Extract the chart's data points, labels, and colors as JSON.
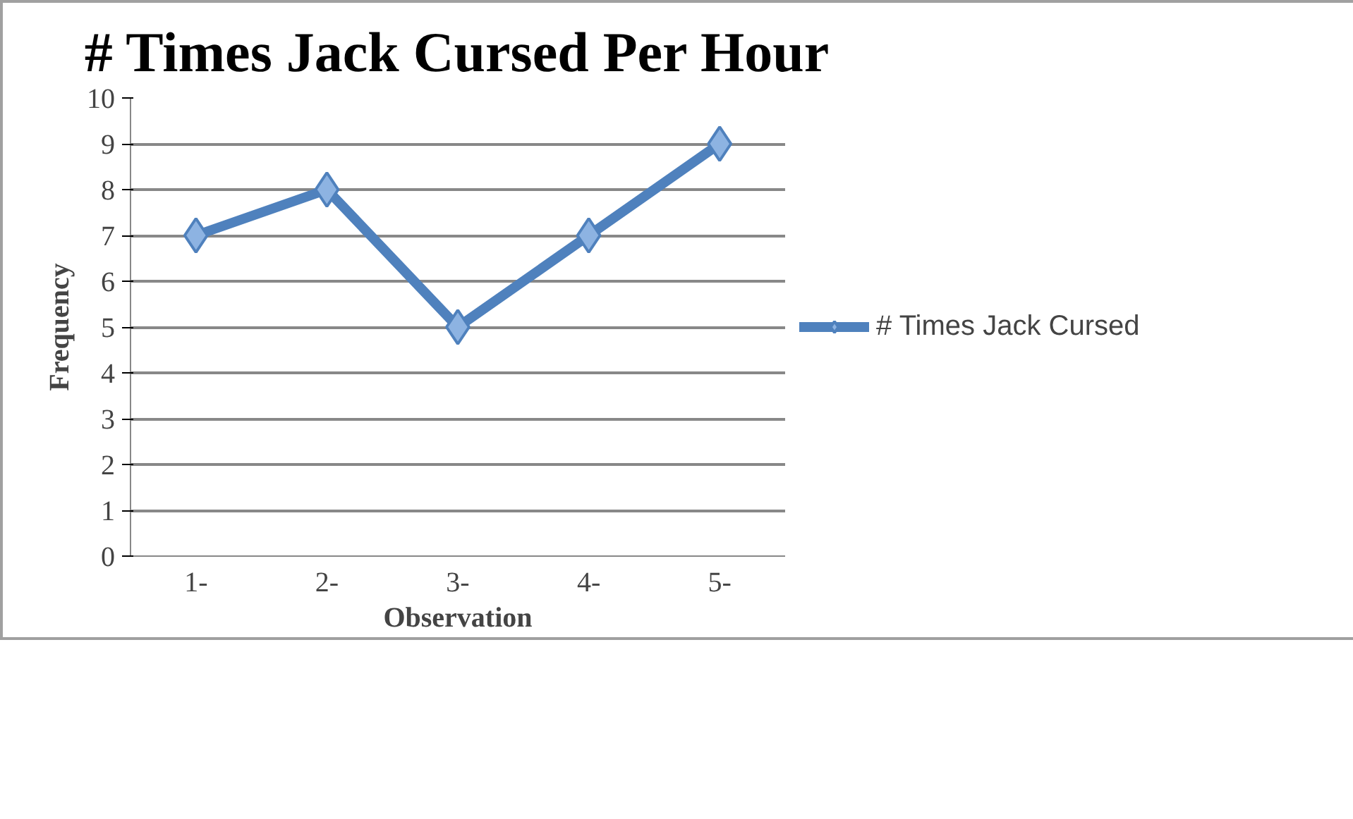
{
  "chart_data": {
    "type": "line",
    "title": "# Times Jack Cursed Per Hour",
    "xlabel": "Observation",
    "ylabel": "Frequency",
    "categories": [
      "1-",
      "2-",
      "3-",
      "4-",
      "5-"
    ],
    "series": [
      {
        "name": "# Times Jack Cursed",
        "color": "#4f81bd",
        "values": [
          7,
          8,
          5,
          7,
          9
        ]
      }
    ],
    "ylim": [
      0,
      10
    ],
    "yticks": [
      0,
      1,
      2,
      3,
      4,
      5,
      6,
      7,
      8,
      9,
      10
    ],
    "grid": "y",
    "legend": "right",
    "marker": "diamond",
    "line_style": "solid"
  }
}
